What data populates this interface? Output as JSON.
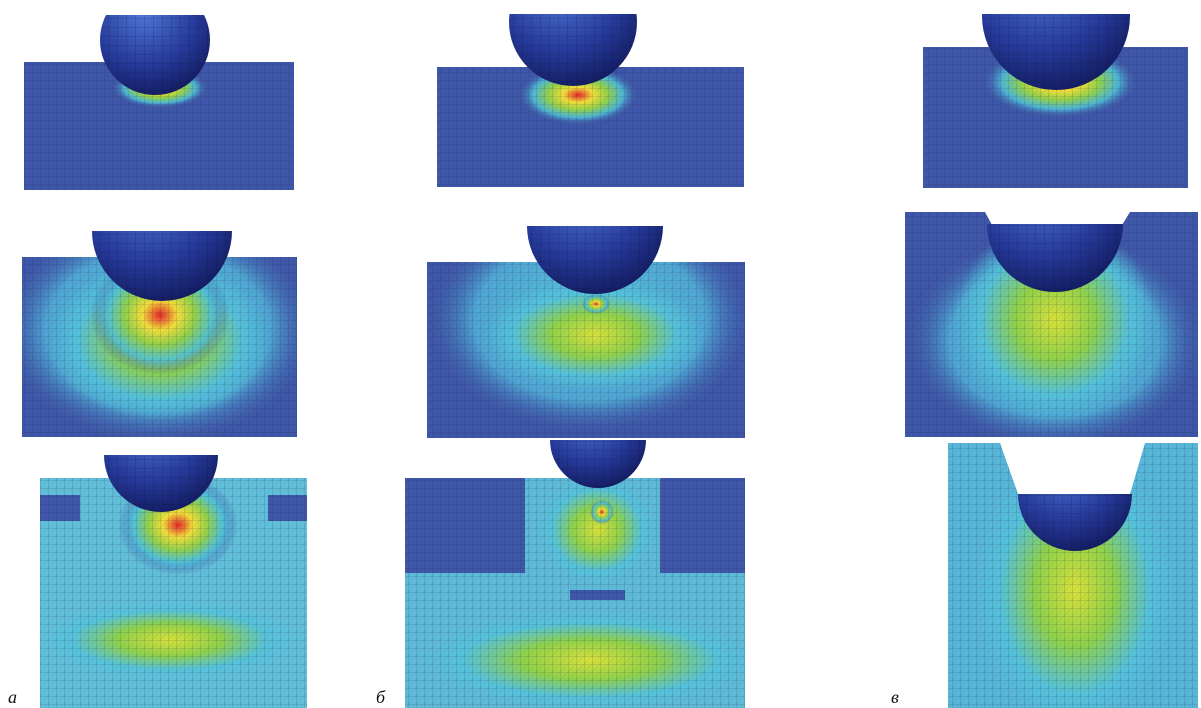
{
  "panel_labels": [
    "а",
    "б",
    "в"
  ]
}
